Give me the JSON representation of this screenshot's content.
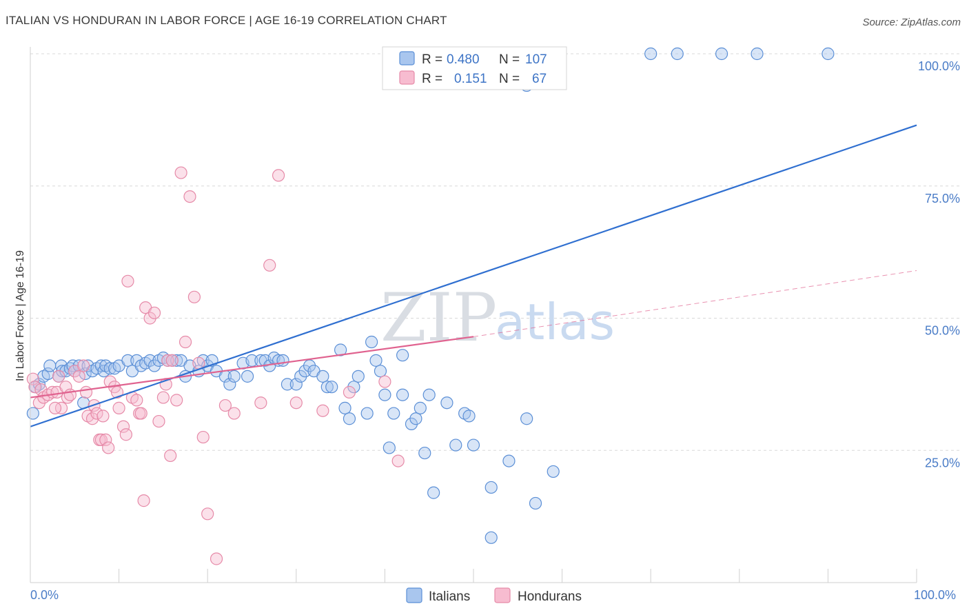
{
  "title": "ITALIAN VS HONDURAN IN LABOR FORCE | AGE 16-19 CORRELATION CHART",
  "source": "Source: ZipAtlas.com",
  "watermark": {
    "zip": "ZIP",
    "atlas": "atlas"
  },
  "colors": {
    "italians_fill": "#a9c6ee",
    "italians_stroke": "#5b8fd6",
    "italians_line": "#2f6fd0",
    "hondurans_fill": "#f7bcd0",
    "hondurans_stroke": "#e68aa8",
    "hondurans_line": "#e0628f",
    "grid": "#d8d8d8",
    "tick_text": "#4a7cc7"
  },
  "legend": {
    "r_label": "R =",
    "n_label": "N =",
    "rows": [
      {
        "r": "0.480",
        "n": "107"
      },
      {
        "r": "0.151",
        "n": "67"
      }
    ]
  },
  "chart_data": {
    "type": "scatter",
    "title": "ITALIAN VS HONDURAN IN LABOR FORCE | AGE 16-19 CORRELATION CHART",
    "xlabel": "",
    "ylabel": "In Labor Force | Age 16-19",
    "xlim": [
      0,
      100
    ],
    "ylim": [
      0,
      100
    ],
    "x_tick_labels": [
      "0.0%",
      "100.0%"
    ],
    "y_tick_labels": [
      "100.0%",
      "75.0%",
      "50.0%",
      "25.0%"
    ],
    "y_ticks": [
      100,
      75,
      50,
      25
    ],
    "grid": true,
    "legend_position": "top-center",
    "series": [
      {
        "name": "Italians",
        "r": 0.48,
        "n": 107,
        "trend": {
          "x": [
            0,
            100
          ],
          "y": [
            29.5,
            86.5
          ],
          "dashed_extension": false
        },
        "points": [
          [
            0.3,
            32
          ],
          [
            0.6,
            37
          ],
          [
            1,
            37.5
          ],
          [
            1.5,
            39
          ],
          [
            2,
            39.5
          ],
          [
            2.2,
            41
          ],
          [
            3.2,
            39
          ],
          [
            3.5,
            41
          ],
          [
            3.6,
            40
          ],
          [
            4,
            40
          ],
          [
            4.5,
            40.5
          ],
          [
            4.8,
            41
          ],
          [
            5,
            40
          ],
          [
            5.5,
            41
          ],
          [
            6,
            34
          ],
          [
            6.2,
            39.5
          ],
          [
            6.5,
            41
          ],
          [
            7,
            40
          ],
          [
            7.5,
            40.5
          ],
          [
            8,
            41
          ],
          [
            8.3,
            40
          ],
          [
            8.5,
            41
          ],
          [
            9,
            40.5
          ],
          [
            9.5,
            40.5
          ],
          [
            10,
            41
          ],
          [
            11,
            42
          ],
          [
            11.5,
            40
          ],
          [
            12,
            42
          ],
          [
            12.5,
            41
          ],
          [
            13,
            41.5
          ],
          [
            13.5,
            42
          ],
          [
            14,
            41
          ],
          [
            14.5,
            42
          ],
          [
            15,
            42.5
          ],
          [
            15.5,
            42
          ],
          [
            16,
            42
          ],
          [
            16.5,
            42
          ],
          [
            17,
            42
          ],
          [
            17.5,
            39
          ],
          [
            18,
            41
          ],
          [
            19,
            40
          ],
          [
            19.5,
            42
          ],
          [
            20,
            41
          ],
          [
            20.5,
            42
          ],
          [
            21,
            40
          ],
          [
            22,
            39
          ],
          [
            22.5,
            37.5
          ],
          [
            23,
            39
          ],
          [
            24,
            41.5
          ],
          [
            24.5,
            39
          ],
          [
            25,
            42
          ],
          [
            26,
            42
          ],
          [
            26.5,
            42
          ],
          [
            27,
            41
          ],
          [
            27.5,
            42.5
          ],
          [
            28,
            42
          ],
          [
            28.5,
            42
          ],
          [
            29,
            37.5
          ],
          [
            30,
            37.5
          ],
          [
            30.5,
            39
          ],
          [
            31,
            40
          ],
          [
            31.5,
            41
          ],
          [
            32,
            40
          ],
          [
            33,
            39
          ],
          [
            33.5,
            37
          ],
          [
            34,
            37
          ],
          [
            35,
            44
          ],
          [
            35.5,
            33
          ],
          [
            36,
            31
          ],
          [
            36.5,
            37
          ],
          [
            37,
            39
          ],
          [
            38,
            32
          ],
          [
            38.5,
            45.5
          ],
          [
            39,
            42
          ],
          [
            39.5,
            40
          ],
          [
            40,
            35.5
          ],
          [
            40.5,
            25.5
          ],
          [
            41,
            32
          ],
          [
            42,
            43
          ],
          [
            42,
            35.5
          ],
          [
            43,
            30
          ],
          [
            43.5,
            31
          ],
          [
            44,
            33
          ],
          [
            44.5,
            24.5
          ],
          [
            45,
            35.5
          ],
          [
            45.5,
            17
          ],
          [
            47,
            34
          ],
          [
            48,
            26
          ],
          [
            49,
            32
          ],
          [
            49.5,
            31.5
          ],
          [
            50,
            26
          ],
          [
            52,
            18
          ],
          [
            52,
            8.5
          ],
          [
            54,
            23
          ],
          [
            56,
            31
          ],
          [
            57,
            15
          ],
          [
            59,
            21
          ],
          [
            41,
            99.5
          ],
          [
            44,
            99.5
          ],
          [
            48,
            99.5
          ],
          [
            51,
            99.5
          ],
          [
            70,
            100
          ],
          [
            73,
            100
          ],
          [
            78,
            100
          ],
          [
            82,
            100
          ],
          [
            90,
            100
          ],
          [
            56,
            94
          ]
        ]
      },
      {
        "name": "Hondurans",
        "r": 0.151,
        "n": 67,
        "trend": {
          "x": [
            0,
            50
          ],
          "y": [
            35,
            46.5
          ],
          "dashed_extension": {
            "x": [
              50,
              100
            ],
            "y": [
              46.5,
              59
            ]
          }
        },
        "points": [
          [
            0.3,
            38.5
          ],
          [
            0.5,
            37
          ],
          [
            1,
            34
          ],
          [
            1.2,
            36.5
          ],
          [
            1.5,
            35
          ],
          [
            2,
            35.5
          ],
          [
            2.5,
            36
          ],
          [
            3,
            36
          ],
          [
            3.2,
            39
          ],
          [
            3.5,
            33
          ],
          [
            4,
            37
          ],
          [
            4.2,
            35
          ],
          [
            4.5,
            35.5
          ],
          [
            5,
            40
          ],
          [
            5.5,
            39
          ],
          [
            6,
            41
          ],
          [
            6.3,
            36
          ],
          [
            6.5,
            31.5
          ],
          [
            7,
            31
          ],
          [
            7.2,
            33.5
          ],
          [
            7.5,
            32
          ],
          [
            7.8,
            27
          ],
          [
            8,
            27
          ],
          [
            8.2,
            31.5
          ],
          [
            8.5,
            27
          ],
          [
            8.8,
            25.5
          ],
          [
            9,
            38
          ],
          [
            9.5,
            37
          ],
          [
            9.8,
            36
          ],
          [
            10,
            33
          ],
          [
            10.5,
            29.5
          ],
          [
            10.8,
            28
          ],
          [
            11,
            57
          ],
          [
            11.5,
            35
          ],
          [
            12,
            34.5
          ],
          [
            12.3,
            32
          ],
          [
            12.5,
            32
          ],
          [
            12.8,
            15.5
          ],
          [
            13,
            52
          ],
          [
            13.5,
            50
          ],
          [
            14,
            51
          ],
          [
            14.5,
            30.5
          ],
          [
            15,
            35
          ],
          [
            15.3,
            37.5
          ],
          [
            15.5,
            42
          ],
          [
            15.8,
            24
          ],
          [
            16,
            42
          ],
          [
            16.5,
            34.5
          ],
          [
            17,
            77.5
          ],
          [
            17.5,
            45.5
          ],
          [
            18,
            73
          ],
          [
            18.5,
            54
          ],
          [
            19,
            41.5
          ],
          [
            19.5,
            27.5
          ],
          [
            20,
            13
          ],
          [
            21,
            4.5
          ],
          [
            22,
            33.5
          ],
          [
            23,
            32
          ],
          [
            26,
            34
          ],
          [
            27,
            60
          ],
          [
            28,
            77
          ],
          [
            41.5,
            23
          ],
          [
            40,
            38
          ],
          [
            36,
            36
          ],
          [
            30,
            34
          ],
          [
            33,
            32.5
          ],
          [
            2.8,
            33
          ]
        ]
      }
    ]
  }
}
